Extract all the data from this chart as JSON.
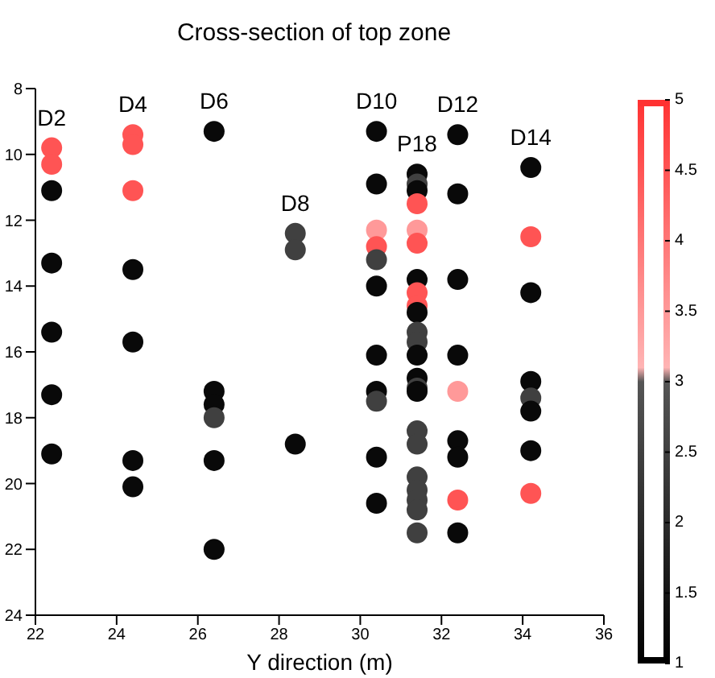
{
  "chart_data": {
    "type": "scatter",
    "title": "Cross-section of top zone",
    "xlabel": "Y direction (m)",
    "x": [
      22.4,
      22.4,
      22.4,
      22.4,
      22.4,
      22.4,
      22.4,
      24.4,
      24.4,
      24.4,
      24.4,
      24.4,
      24.4,
      24.4,
      26.4,
      26.4,
      26.4,
      26.4,
      26.4,
      26.4,
      28.4,
      28.4,
      28.4,
      30.4,
      30.4,
      30.4,
      30.4,
      30.4,
      30.4,
      30.4,
      30.4,
      30.4,
      30.4,
      30.4,
      31.4,
      31.4,
      31.4,
      31.4,
      31.4,
      31.4,
      31.4,
      31.4,
      31.4,
      31.4,
      31.4,
      31.4,
      31.4,
      31.4,
      31.4,
      31.4,
      31.4,
      31.4,
      31.4,
      31.4,
      31.4,
      31.4,
      31.4,
      32.4,
      32.4,
      32.4,
      32.4,
      32.4,
      32.4,
      32.4,
      32.4,
      32.4,
      34.2,
      34.2,
      34.2,
      34.2,
      34.2,
      34.2,
      34.2,
      34.2
    ],
    "values": [
      9.8,
      10.3,
      11.1,
      13.3,
      15.4,
      17.3,
      19.1,
      9.4,
      9.7,
      11.1,
      13.5,
      15.7,
      19.3,
      20.1,
      9.3,
      17.2,
      17.6,
      18.0,
      19.3,
      22.0,
      12.4,
      12.9,
      18.8,
      9.3,
      10.9,
      12.3,
      12.8,
      13.2,
      14.0,
      16.1,
      17.2,
      17.5,
      19.2,
      20.6,
      10.6,
      10.9,
      11.1,
      11.5,
      12.3,
      12.7,
      13.8,
      14.2,
      14.6,
      14.8,
      15.4,
      15.7,
      16.1,
      16.8,
      17.1,
      17.2,
      18.4,
      18.8,
      19.8,
      20.2,
      20.5,
      20.8,
      21.5,
      9.4,
      11.2,
      13.8,
      16.1,
      17.2,
      18.7,
      19.2,
      20.5,
      21.5,
      10.4,
      12.5,
      14.2,
      16.9,
      17.4,
      17.8,
      19.0,
      20.3
    ],
    "cvalues": [
      4.5,
      4.5,
      1.2,
      1.2,
      1.2,
      1.2,
      1.2,
      4.5,
      4.5,
      4.5,
      1.2,
      1.2,
      1.2,
      1.2,
      1.2,
      1.2,
      1.2,
      2.5,
      1.2,
      1.2,
      2.5,
      2.5,
      1.2,
      1.2,
      1.2,
      3.5,
      4.5,
      2.5,
      1.2,
      1.2,
      1.2,
      2.5,
      1.2,
      1.2,
      1.2,
      2.5,
      1.2,
      4.5,
      3.5,
      4.5,
      1.2,
      4.5,
      4.5,
      1.2,
      2.5,
      2.5,
      1.2,
      1.2,
      2.5,
      1.2,
      2.5,
      2.5,
      2.5,
      2.5,
      2.5,
      2.5,
      2.5,
      1.2,
      1.2,
      1.2,
      1.2,
      3.5,
      1.2,
      1.2,
      4.5,
      1.2,
      1.2,
      4.5,
      1.2,
      1.2,
      2.5,
      1.2,
      1.2,
      4.5
    ],
    "xlim": [
      22,
      36
    ],
    "xticks": [
      22,
      24,
      26,
      28,
      30,
      32,
      34,
      36
    ],
    "ylim": [
      24,
      8
    ],
    "yticks": [
      8,
      10,
      12,
      14,
      16,
      18,
      20,
      22,
      24
    ],
    "clim": [
      1,
      5
    ],
    "cticks": [
      1,
      1.5,
      2,
      2.5,
      3,
      3.5,
      4,
      4.5,
      5
    ],
    "marker": "circle",
    "grid": false,
    "legend": false,
    "annotations": [
      "D2",
      "D4",
      "D6",
      "D8",
      "D10",
      "P18",
      "D12",
      "D14"
    ]
  }
}
